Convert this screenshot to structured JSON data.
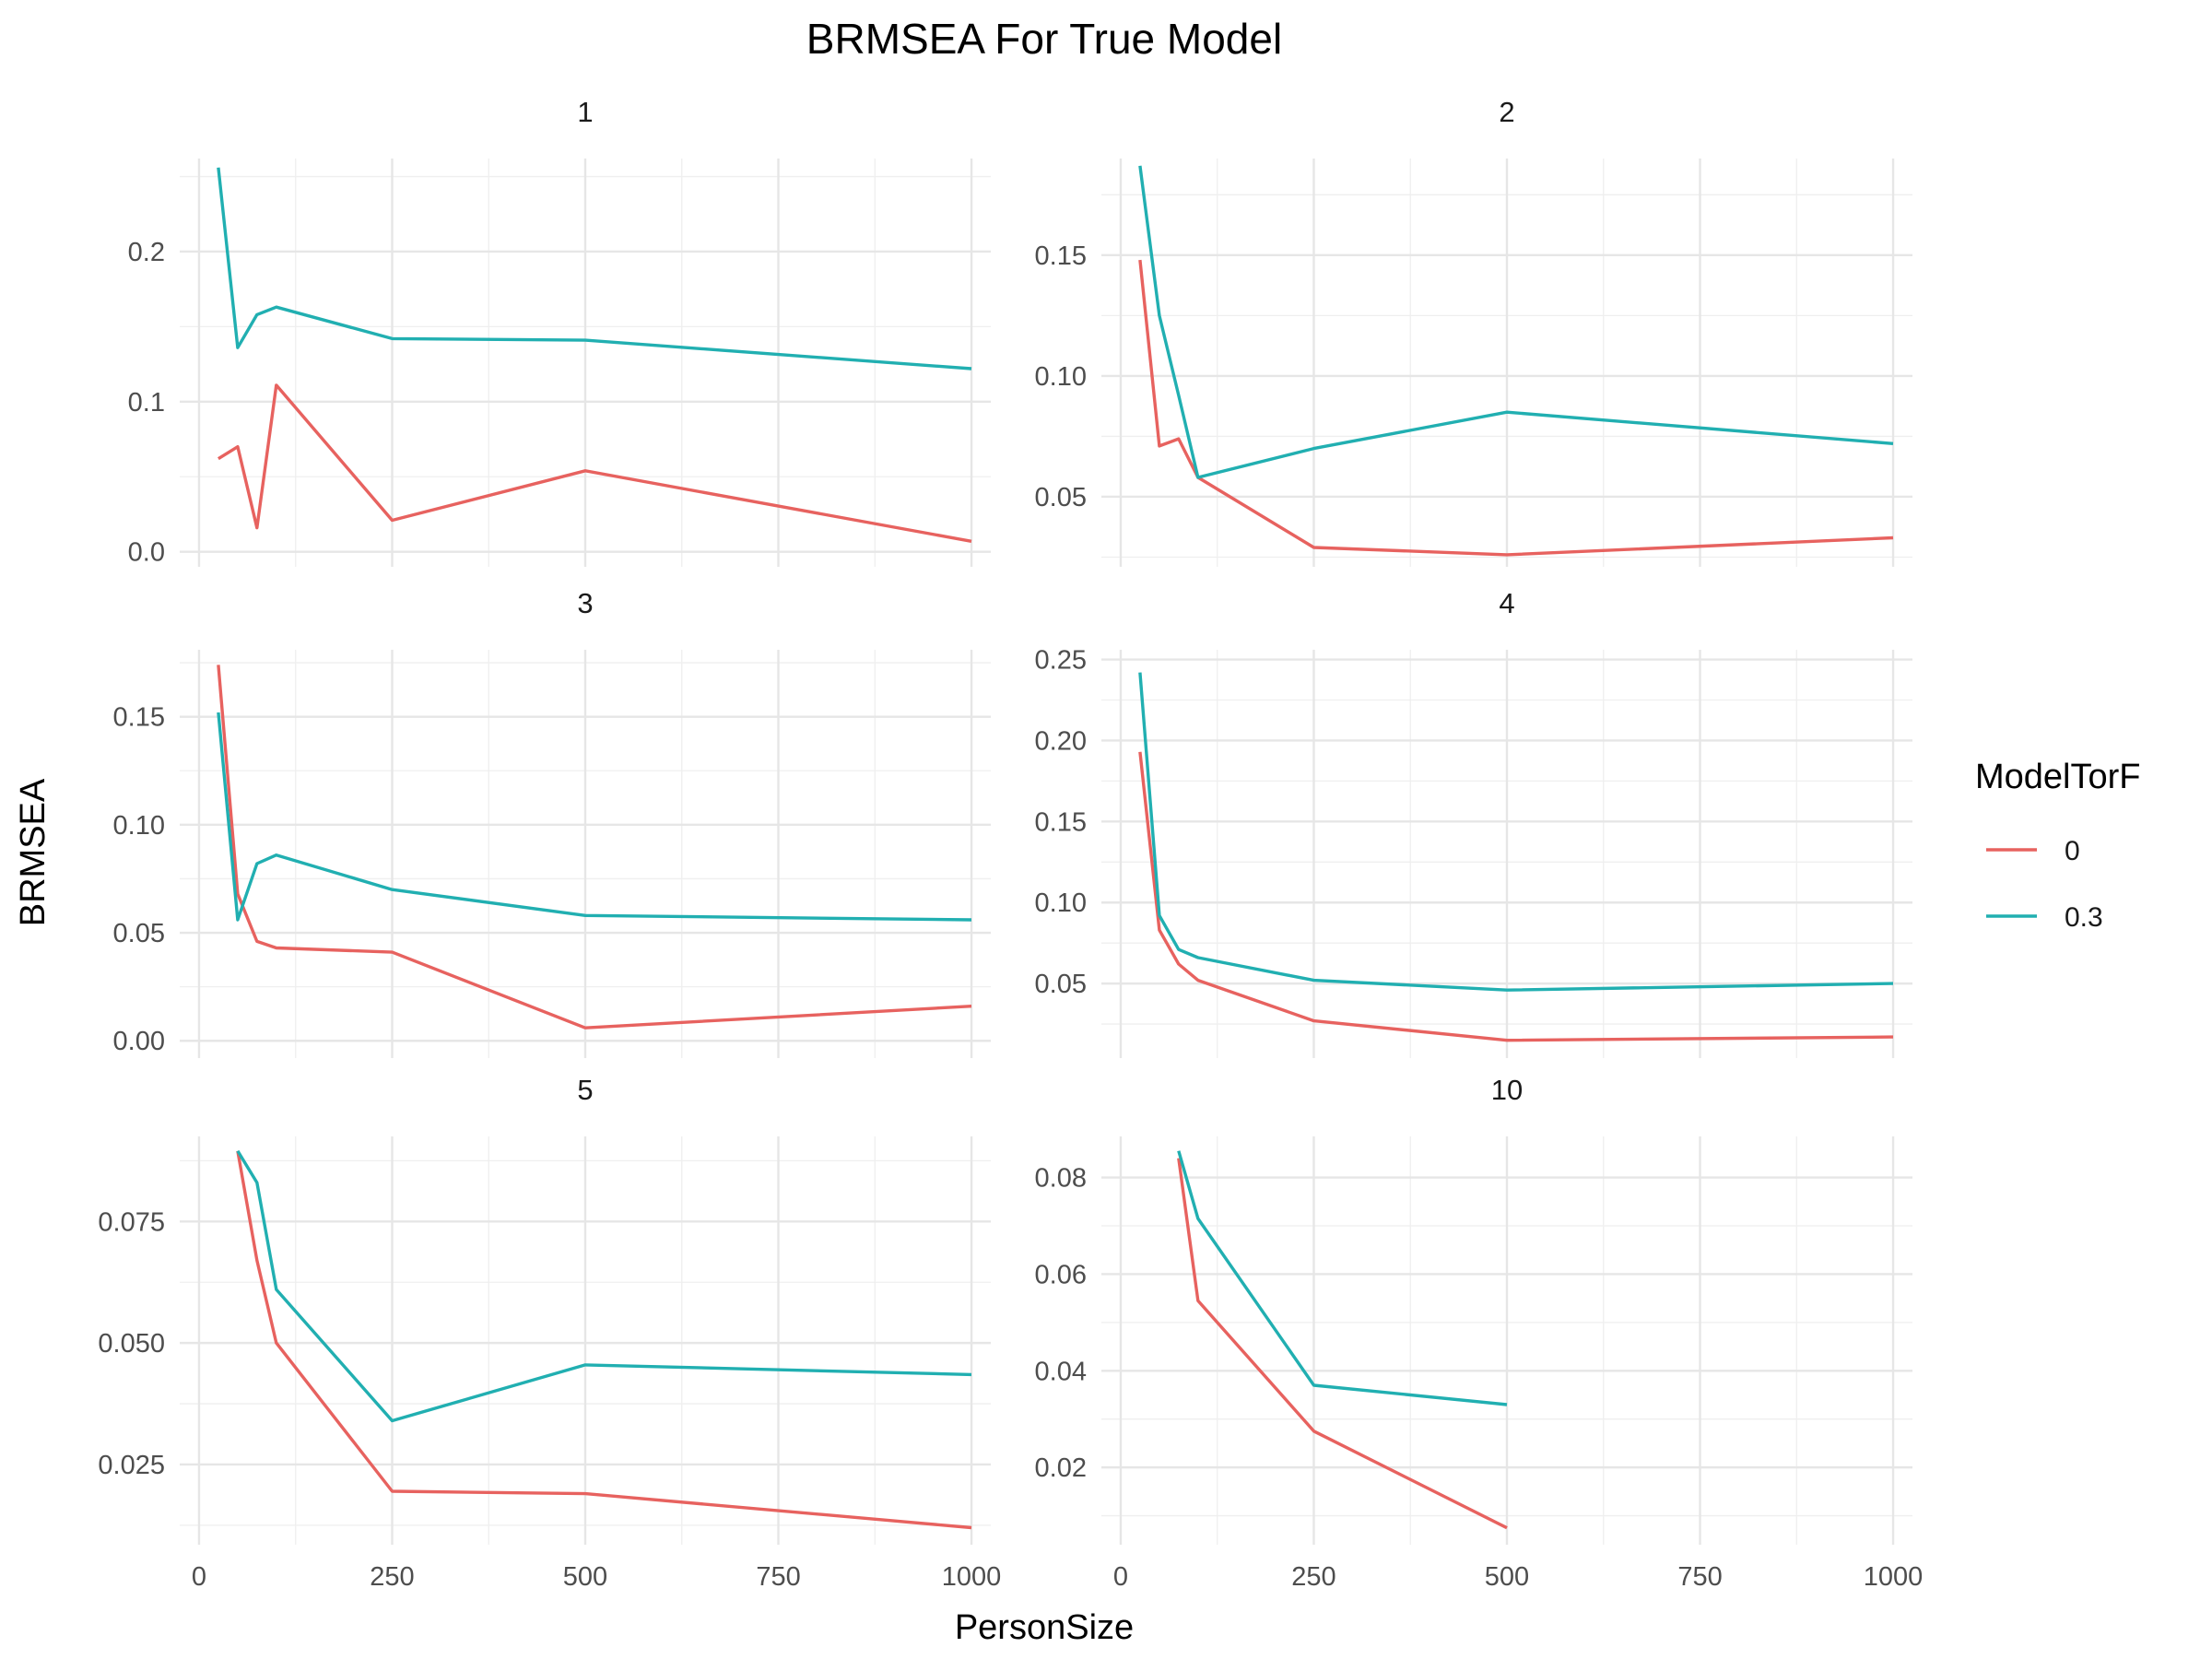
{
  "chart_data": {
    "type": "line",
    "title": "BRMSEA For True Model",
    "xlabel": "PersonSize",
    "ylabel": "BRMSEA",
    "grid": true,
    "legend": {
      "title": "ModelTorF",
      "placement": "right",
      "entries": [
        {
          "label": "0",
          "color": "#E7625F"
        },
        {
          "label": "0.3",
          "color": "#21AFB1"
        }
      ]
    },
    "x_ticks": [
      0,
      250,
      500,
      750,
      1000
    ],
    "x_tick_labels": [
      "0",
      "250",
      "500",
      "750",
      "1000"
    ],
    "xlim": [
      -25,
      1025
    ],
    "panels": [
      {
        "facet": "1",
        "ylim": [
          -0.01,
          0.262
        ],
        "y_ticks": [
          0.0,
          0.1,
          0.2
        ],
        "y_tick_labels": [
          "0.0",
          "0.1",
          "0.2"
        ],
        "series": [
          {
            "name": "0",
            "color": "#E7625F",
            "x": [
              25,
              50,
              75,
              100,
              250,
              500,
              1000
            ],
            "y": [
              0.062,
              0.07,
              0.016,
              0.111,
              0.021,
              0.054,
              0.007
            ]
          },
          {
            "name": "0.3",
            "color": "#21AFB1",
            "x": [
              25,
              50,
              75,
              100,
              250,
              500,
              1000
            ],
            "y": [
              0.256,
              0.136,
              0.158,
              0.163,
              0.142,
              0.141,
              0.122
            ]
          }
        ]
      },
      {
        "facet": "2",
        "ylim": [
          0.021,
          0.19
        ],
        "y_ticks": [
          0.05,
          0.1,
          0.15
        ],
        "y_tick_labels": [
          "0.05",
          "0.10",
          "0.15"
        ],
        "series": [
          {
            "name": "0",
            "color": "#E7625F",
            "x": [
              25,
              50,
              75,
              100,
              250,
              500,
              1000
            ],
            "y": [
              0.148,
              0.071,
              0.074,
              0.058,
              0.029,
              0.026,
              0.033
            ]
          },
          {
            "name": "0.3",
            "color": "#21AFB1",
            "x": [
              25,
              50,
              75,
              100,
              250,
              500,
              1000
            ],
            "y": [
              0.187,
              0.125,
              0.092,
              0.058,
              0.07,
              0.085,
              0.072
            ]
          }
        ]
      },
      {
        "facet": "3",
        "ylim": [
          -0.008,
          0.181
        ],
        "y_ticks": [
          0.0,
          0.05,
          0.1,
          0.15
        ],
        "y_tick_labels": [
          "0.00",
          "0.05",
          "0.10",
          "0.15"
        ],
        "series": [
          {
            "name": "0",
            "color": "#E7625F",
            "x": [
              25,
              50,
              75,
              100,
              250,
              500,
              1000
            ],
            "y": [
              0.174,
              0.068,
              0.046,
              0.043,
              0.041,
              0.006,
              0.016
            ]
          },
          {
            "name": "0.3",
            "color": "#21AFB1",
            "x": [
              25,
              50,
              75,
              100,
              250,
              500,
              1000
            ],
            "y": [
              0.152,
              0.056,
              0.082,
              0.086,
              0.07,
              0.058,
              0.056
            ]
          }
        ]
      },
      {
        "facet": "4",
        "ylim": [
          0.004,
          0.256
        ],
        "y_ticks": [
          0.05,
          0.1,
          0.15,
          0.2,
          0.25
        ],
        "y_tick_labels": [
          "0.05",
          "0.10",
          "0.15",
          "0.20",
          "0.25"
        ],
        "series": [
          {
            "name": "0",
            "color": "#E7625F",
            "x": [
              25,
              50,
              75,
              100,
              250,
              500,
              1000
            ],
            "y": [
              0.193,
              0.083,
              0.062,
              0.052,
              0.027,
              0.015,
              0.017
            ]
          },
          {
            "name": "0.3",
            "color": "#21AFB1",
            "x": [
              25,
              50,
              75,
              100,
              250,
              500,
              1000
            ],
            "y": [
              0.242,
              0.092,
              0.071,
              0.066,
              0.052,
              0.046,
              0.05
            ]
          }
        ]
      },
      {
        "facet": "5",
        "ylim": [
          0.0085,
          0.0925
        ],
        "y_ticks": [
          0.025,
          0.05,
          0.075
        ],
        "y_tick_labels": [
          "0.025",
          "0.050",
          "0.075"
        ],
        "series": [
          {
            "name": "0",
            "color": "#E7625F",
            "x": [
              50,
              75,
              100,
              250,
              500,
              1000
            ],
            "y": [
              0.0895,
              0.067,
              0.05,
              0.0195,
              0.019,
              0.012
            ]
          },
          {
            "name": "0.3",
            "color": "#21AFB1",
            "x": [
              50,
              75,
              100,
              250,
              500,
              1000
            ],
            "y": [
              0.0895,
              0.083,
              0.061,
              0.034,
              0.0455,
              0.0435
            ]
          }
        ]
      },
      {
        "facet": "10",
        "ylim": [
          0.004,
          0.0885
        ],
        "y_ticks": [
          0.02,
          0.04,
          0.06,
          0.08
        ],
        "y_tick_labels": [
          "0.02",
          "0.04",
          "0.06",
          "0.08"
        ],
        "series": [
          {
            "name": "0",
            "color": "#E7625F",
            "x": [
              75,
              100,
              250,
              500
            ],
            "y": [
              0.084,
              0.0545,
              0.0275,
              0.0075
            ]
          },
          {
            "name": "0.3",
            "color": "#21AFB1",
            "x": [
              75,
              100,
              250,
              500
            ],
            "y": [
              0.0855,
              0.0715,
              0.037,
              0.033
            ]
          }
        ]
      }
    ]
  }
}
